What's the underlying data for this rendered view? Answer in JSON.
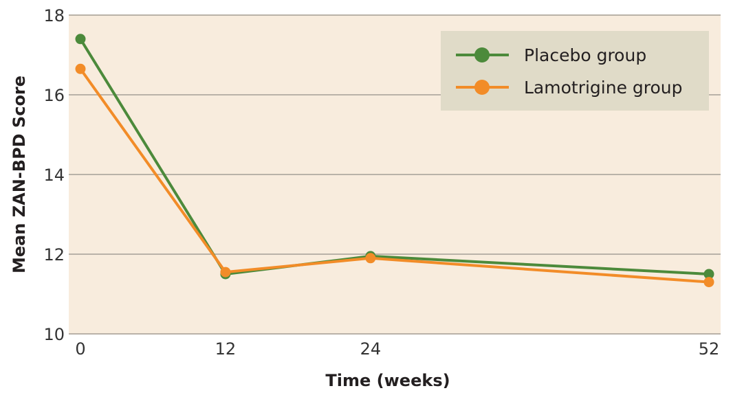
{
  "chart_data": {
    "type": "line",
    "xlabel": "Time (weeks)",
    "ylabel": "Mean ZAN-BPD Score",
    "x": [
      0,
      12,
      24,
      52
    ],
    "x_ticks": [
      "0",
      "12",
      "24",
      "52"
    ],
    "y_ticks": [
      "10",
      "12",
      "14",
      "16",
      "18"
    ],
    "ylim": [
      10,
      18
    ],
    "grid": "horizontal",
    "legend_position": "top-right",
    "plot_background": "#f8ecdd",
    "legend_background": "#e0dbc8",
    "gridline_color": "#b9b2a8",
    "series": [
      {
        "name": "Placebo group",
        "color": "#4c8a3b",
        "values": [
          17.4,
          11.5,
          11.95,
          11.5
        ]
      },
      {
        "name": "Lamotrigine group",
        "color": "#f28c28",
        "values": [
          16.65,
          11.55,
          11.9,
          11.3
        ]
      }
    ]
  }
}
